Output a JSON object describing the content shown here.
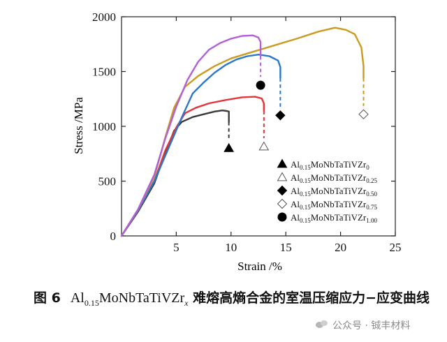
{
  "chart_data": {
    "type": "line",
    "title": "",
    "xlabel": "Strain /%",
    "ylabel": "Stress /MPa",
    "xlim": [
      0,
      25
    ],
    "ylim": [
      0,
      2000
    ],
    "xticks": [
      "5",
      "10",
      "15",
      "20",
      "25"
    ],
    "yticks": [
      "0",
      "500",
      "1000",
      "1500",
      "2000"
    ],
    "legend_position": "bottom-right",
    "series": [
      {
        "name": "Al0.15MoNbTaTiVZr0",
        "base": "Al",
        "sub1": "0.15",
        "mid": "MoNbTaTiVZr",
        "sub2": "0",
        "color": "#3a3a3a",
        "marker": "triangle-filled",
        "points": [
          [
            0,
            0
          ],
          [
            1.5,
            220
          ],
          [
            3,
            480
          ],
          [
            4,
            760
          ],
          [
            4.8,
            960
          ],
          [
            5.5,
            1040
          ],
          [
            6.5,
            1085
          ],
          [
            7.5,
            1110
          ],
          [
            8.5,
            1135
          ],
          [
            9.2,
            1145
          ],
          [
            9.6,
            1140
          ],
          [
            9.8,
            1135
          ],
          [
            9.8,
            1040
          ]
        ],
        "failure_strain": 9.8,
        "failure_stress": 1040,
        "marker_point": [
          9.8,
          800
        ]
      },
      {
        "name": "Al0.15MoNbTaTiVZr0.25",
        "base": "Al",
        "sub1": "0.15",
        "mid": "MoNbTaTiVZr",
        "sub2": "0.25",
        "color": "#e4353b",
        "marker": "triangle-open",
        "points": [
          [
            0,
            0
          ],
          [
            1.5,
            230
          ],
          [
            3,
            500
          ],
          [
            4,
            780
          ],
          [
            5,
            990
          ],
          [
            5.8,
            1120
          ],
          [
            6.8,
            1170
          ],
          [
            8,
            1210
          ],
          [
            9.5,
            1240
          ],
          [
            11,
            1265
          ],
          [
            12.2,
            1270
          ],
          [
            12.8,
            1255
          ],
          [
            13,
            1210
          ],
          [
            13,
            1140
          ]
        ],
        "failure_strain": 13.0,
        "failure_stress": 1140,
        "marker_point": [
          13.0,
          815
        ]
      },
      {
        "name": "Al0.15MoNbTaTiVZr0.50",
        "base": "Al",
        "sub1": "0.15",
        "mid": "MoNbTaTiVZr",
        "sub2": "0.50",
        "color": "#2b78c8",
        "marker": "diamond-filled",
        "points": [
          [
            0,
            0
          ],
          [
            1.5,
            230
          ],
          [
            3,
            500
          ],
          [
            4.5,
            850
          ],
          [
            5.5,
            1080
          ],
          [
            6.5,
            1300
          ],
          [
            7.5,
            1400
          ],
          [
            8.5,
            1490
          ],
          [
            9.5,
            1560
          ],
          [
            10.5,
            1610
          ],
          [
            11.5,
            1640
          ],
          [
            12.5,
            1655
          ],
          [
            13.5,
            1640
          ],
          [
            14.3,
            1600
          ],
          [
            14.5,
            1540
          ],
          [
            14.5,
            1440
          ]
        ],
        "failure_strain": 14.5,
        "failure_stress": 1440,
        "marker_point": [
          14.5,
          1100
        ]
      },
      {
        "name": "Al0.15MoNbTaTiVZr0.75",
        "base": "Al",
        "sub1": "0.15",
        "mid": "MoNbTaTiVZr",
        "sub2": "0.75",
        "color": "#c99b1e",
        "marker": "diamond-open",
        "points": [
          [
            0,
            0
          ],
          [
            1.5,
            240
          ],
          [
            3,
            540
          ],
          [
            4,
            900
          ],
          [
            4.8,
            1170
          ],
          [
            5.8,
            1360
          ],
          [
            7,
            1460
          ],
          [
            8.5,
            1550
          ],
          [
            10,
            1620
          ],
          [
            12,
            1680
          ],
          [
            14,
            1740
          ],
          [
            16,
            1800
          ],
          [
            18,
            1865
          ],
          [
            19.5,
            1900
          ],
          [
            20.5,
            1880
          ],
          [
            21.3,
            1840
          ],
          [
            21.9,
            1720
          ],
          [
            22.1,
            1550
          ],
          [
            22.1,
            1440
          ]
        ],
        "failure_strain": 22.1,
        "failure_stress": 1440,
        "marker_point": [
          22.1,
          1110
        ]
      },
      {
        "name": "Al0.15MoNbTaTiVZr1.00",
        "base": "Al",
        "sub1": "0.15",
        "mid": "MoNbTaTiVZr",
        "sub2": "1.00",
        "color": "#b25fd9",
        "marker": "circle-filled",
        "points": [
          [
            0,
            0
          ],
          [
            1.5,
            240
          ],
          [
            3,
            560
          ],
          [
            4,
            890
          ],
          [
            5,
            1180
          ],
          [
            6,
            1420
          ],
          [
            7,
            1590
          ],
          [
            8,
            1700
          ],
          [
            9,
            1760
          ],
          [
            10,
            1800
          ],
          [
            11,
            1825
          ],
          [
            12,
            1830
          ],
          [
            12.5,
            1810
          ],
          [
            12.7,
            1770
          ],
          [
            12.7,
            1640
          ]
        ],
        "failure_strain": 12.7,
        "failure_stress": 1640,
        "marker_point": [
          12.7,
          1375
        ]
      }
    ]
  },
  "caption": {
    "figure_label": "图 6",
    "formula_base": "Al",
    "formula_sub": "0.15",
    "formula_mid": "MoNbTaTiVZr",
    "formula_sub_x": "x",
    "text": " 难熔高熵合金的室温压缩应力−应变曲线"
  },
  "watermark": {
    "text": "公众号 · 铖丰材料"
  }
}
